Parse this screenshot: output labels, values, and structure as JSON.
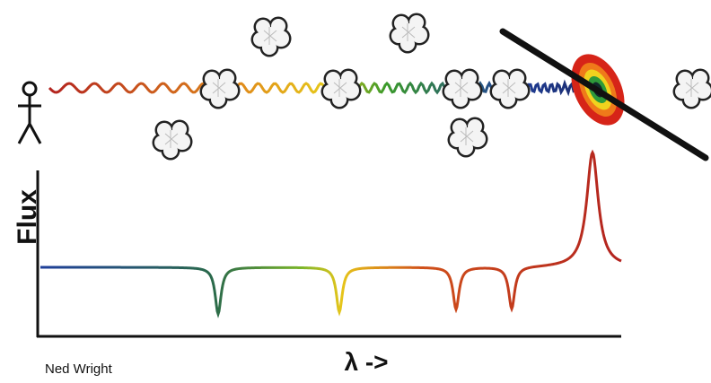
{
  "labels": {
    "y_axis": "Flux",
    "x_axis": "λ ->",
    "credit": "Ned Wright"
  }
}
